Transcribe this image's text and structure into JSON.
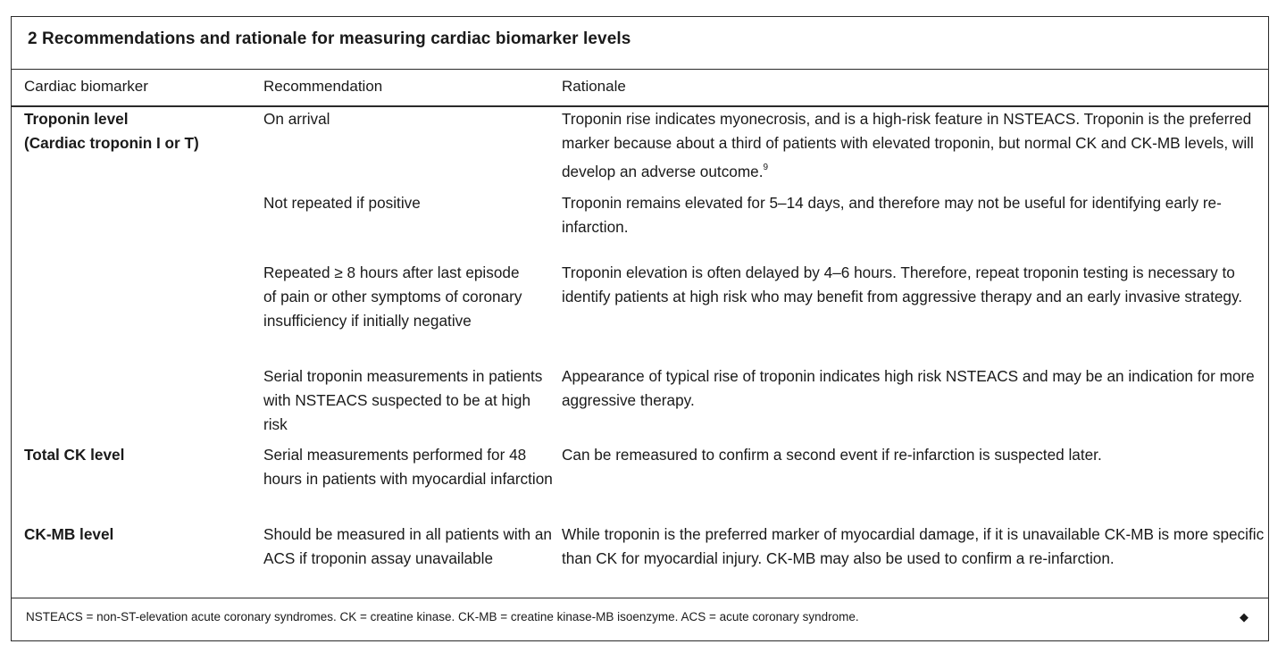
{
  "table": {
    "title": "2  Recommendations and rationale for measuring cardiac biomarker levels",
    "headers": {
      "biomarker": "Cardiac biomarker",
      "recommendation": "Recommendation",
      "rationale": "Rationale"
    },
    "rows": [
      {
        "biomarker_line1": "Troponin level",
        "biomarker_line2": "(Cardiac troponin I or T)",
        "recommendation": "On arrival",
        "rationale": "Troponin rise indicates myonecrosis, and is a high-risk feature in NSTEACS. Troponin is the preferred marker because about a third of patients with elevated troponin, but normal CK and CK-MB levels, will develop an adverse outcome.",
        "rationale_ref": "9"
      },
      {
        "recommendation": "Not repeated if positive",
        "rationale": "Troponin remains elevated for 5–14 days, and therefore may not be useful for identifying early re-infarction."
      },
      {
        "recommendation": "Repeated ≥ 8 hours after last episode of pain or other symptoms of coronary insufficiency if initially negative",
        "rationale": "Troponin elevation is often delayed by 4–6 hours. Therefore, repeat troponin testing is necessary to identify patients at high risk who may benefit from aggressive therapy and an early invasive strategy."
      },
      {
        "recommendation": "Serial troponin measurements in patients with NSTEACS suspected to be at high risk",
        "rationale": "Appearance of typical rise of troponin indicates high risk NSTEACS and may be an indication for more aggressive therapy."
      },
      {
        "biomarker_line1": "Total CK level",
        "recommendation": "Serial measurements performed for 48 hours in patients with myocardial infarction",
        "rationale": "Can be remeasured to confirm a second event if re-infarction is suspected later."
      },
      {
        "biomarker_line1": "CK-MB level",
        "recommendation": "Should be measured in all patients with an ACS if troponin assay unavailable",
        "rationale": "While troponin is the preferred marker of myocardial damage, if it is unavailable CK-MB is more specific than CK for myocardial injury. CK-MB may also be used to confirm a re-infarction."
      }
    ],
    "footnote": "NSTEACS = non-ST-elevation acute coronary syndromes. CK = creatine kinase. CK-MB = creatine kinase-MB isoenzyme. ACS = acute coronary syndrome.",
    "end_mark": "◆"
  }
}
